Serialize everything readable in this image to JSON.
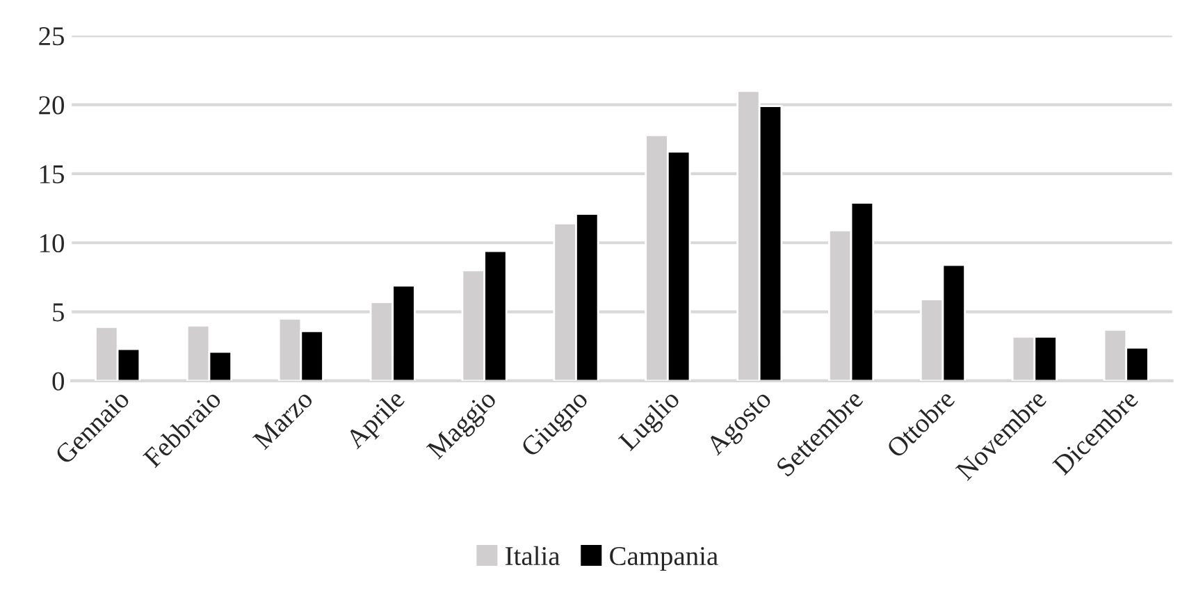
{
  "chart_data": {
    "type": "bar",
    "categories": [
      "Gennaio",
      "Febbraio",
      "Marzo",
      "Aprile",
      "Maggio",
      "Giugno",
      "Luglio",
      "Agosto",
      "Settembre",
      "Ottobre",
      "Novembre",
      "Dicembre"
    ],
    "series": [
      {
        "name": "Italia",
        "color": "#d0cece",
        "values": [
          3.9,
          4.0,
          4.5,
          5.7,
          8.0,
          11.4,
          17.8,
          21.0,
          10.9,
          5.9,
          3.2,
          3.7
        ]
      },
      {
        "name": "Campania",
        "color": "#000000",
        "values": [
          2.3,
          2.1,
          3.6,
          6.9,
          9.4,
          12.1,
          16.6,
          19.9,
          12.9,
          8.4,
          3.2,
          2.4
        ]
      }
    ],
    "ylim": [
      0,
      25
    ],
    "yticks": [
      0,
      5,
      10,
      15,
      20,
      25
    ],
    "grid": "y",
    "legend": "bottom"
  }
}
